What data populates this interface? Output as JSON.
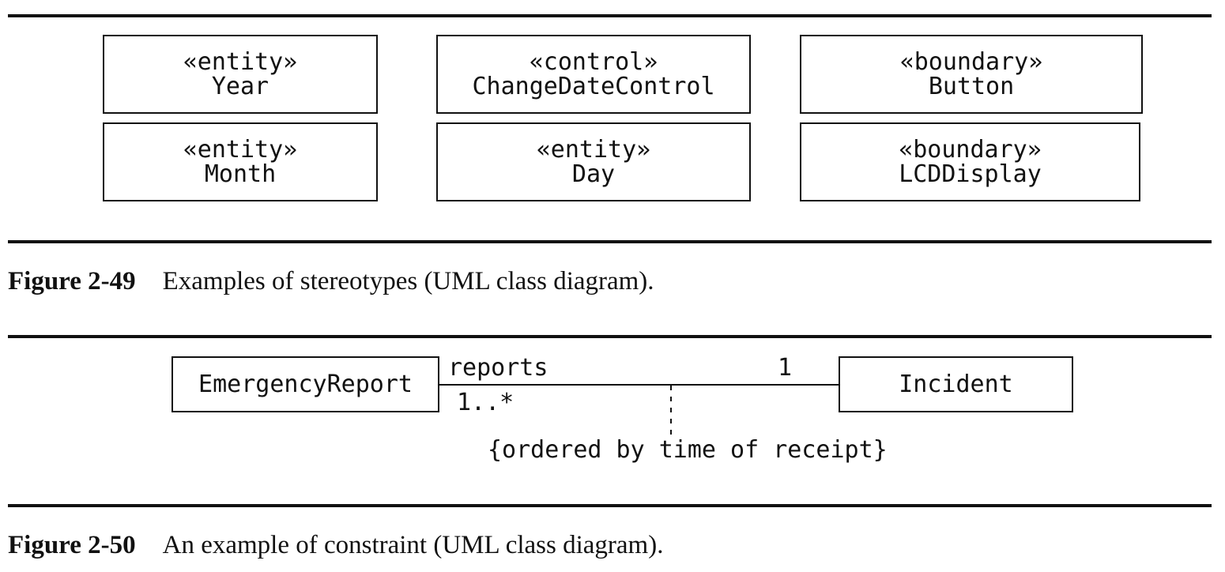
{
  "figure_49": {
    "classes": [
      {
        "stereotype": "«entity»",
        "name": "Year"
      },
      {
        "stereotype": "«control»",
        "name": "ChangeDateControl"
      },
      {
        "stereotype": "«boundary»",
        "name": "Button"
      },
      {
        "stereotype": "«entity»",
        "name": "Month"
      },
      {
        "stereotype": "«entity»",
        "name": "Day"
      },
      {
        "stereotype": "«boundary»",
        "name": "LCDDisplay"
      }
    ],
    "caption_number": "Figure 2-49",
    "caption_text": "Examples of stereotypes (UML class diagram)."
  },
  "figure_50": {
    "left_class": "EmergencyReport",
    "right_class": "Incident",
    "role_name": "reports",
    "left_multiplicity": "1..*",
    "right_multiplicity": "1",
    "constraint": "{ordered by time of receipt}",
    "caption_number": "Figure 2-50",
    "caption_text": "An example of constraint (UML class diagram)."
  }
}
